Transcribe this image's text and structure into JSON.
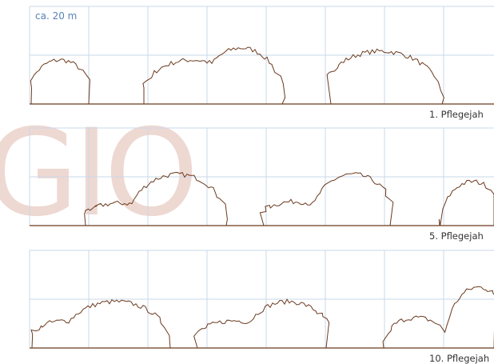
{
  "scale_label": "ca. 20 m",
  "watermark": "GIO",
  "panels": [
    {
      "label": "1. Pflegejah"
    },
    {
      "label": "5. Pflegejah"
    },
    {
      "label": "10. Pflegejah"
    }
  ]
}
